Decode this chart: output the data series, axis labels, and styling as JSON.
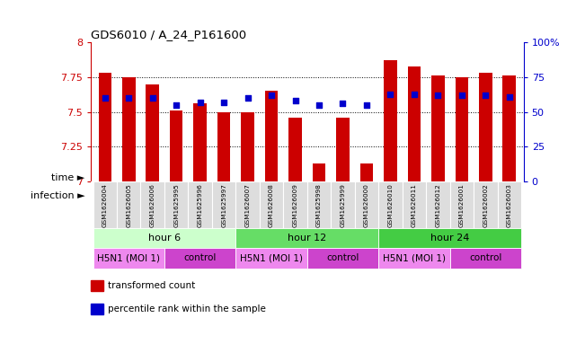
{
  "title": "GDS6010 / A_24_P161600",
  "samples": [
    "GSM1626004",
    "GSM1626005",
    "GSM1626006",
    "GSM1625995",
    "GSM1625996",
    "GSM1625997",
    "GSM1626007",
    "GSM1626008",
    "GSM1626009",
    "GSM1625998",
    "GSM1625999",
    "GSM1626000",
    "GSM1626010",
    "GSM1626011",
    "GSM1626012",
    "GSM1626001",
    "GSM1626002",
    "GSM1626003"
  ],
  "bar_values": [
    7.78,
    7.75,
    7.7,
    7.51,
    7.56,
    7.5,
    7.5,
    7.65,
    7.46,
    7.13,
    7.46,
    7.13,
    7.87,
    7.83,
    7.76,
    7.75,
    7.78,
    7.76
  ],
  "dot_values": [
    60,
    60,
    60,
    55,
    57,
    57,
    60,
    62,
    58,
    55,
    56,
    55,
    63,
    63,
    62,
    62,
    62,
    61
  ],
  "bar_color": "#cc0000",
  "dot_color": "#0000cc",
  "y_min": 7.0,
  "y_max": 8.0,
  "y_ticks": [
    7.0,
    7.25,
    7.5,
    7.75,
    8.0
  ],
  "y_tick_labels": [
    "7",
    "7.25",
    "7.5",
    "7.75",
    "8"
  ],
  "y2_ticks": [
    0,
    25,
    50,
    75,
    100
  ],
  "y2_tick_labels": [
    "0",
    "25",
    "50",
    "75",
    "100%"
  ],
  "time_groups": [
    {
      "label": "hour 6",
      "start": 0,
      "end": 6,
      "color": "#ccffcc"
    },
    {
      "label": "hour 12",
      "start": 6,
      "end": 12,
      "color": "#66dd66"
    },
    {
      "label": "hour 24",
      "start": 12,
      "end": 18,
      "color": "#44cc44"
    }
  ],
  "infection_groups": [
    {
      "label": "H5N1 (MOI 1)",
      "start": 0,
      "end": 3,
      "color": "#ee88ee"
    },
    {
      "label": "control",
      "start": 3,
      "end": 6,
      "color": "#cc44cc"
    },
    {
      "label": "H5N1 (MOI 1)",
      "start": 6,
      "end": 9,
      "color": "#ee88ee"
    },
    {
      "label": "control",
      "start": 9,
      "end": 12,
      "color": "#cc44cc"
    },
    {
      "label": "H5N1 (MOI 1)",
      "start": 12,
      "end": 15,
      "color": "#ee88ee"
    },
    {
      "label": "control",
      "start": 15,
      "end": 18,
      "color": "#cc44cc"
    }
  ],
  "legend_items": [
    {
      "label": "transformed count",
      "color": "#cc0000"
    },
    {
      "label": "percentile rank within the sample",
      "color": "#0000cc"
    }
  ],
  "bar_width": 0.55,
  "label_time": "time",
  "label_infection": "infection",
  "arrow": "►"
}
